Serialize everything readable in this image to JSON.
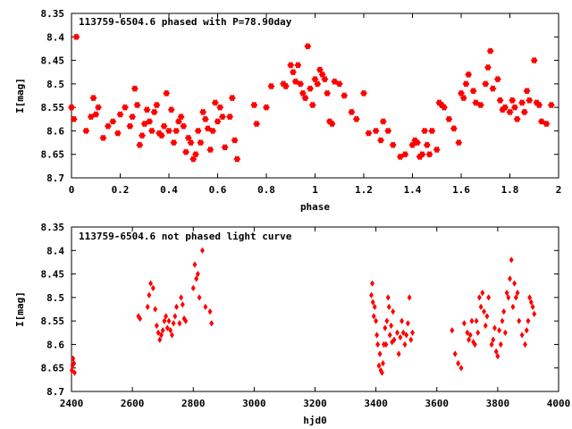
{
  "chart_data": [
    {
      "type": "scatter",
      "title": "113759-6504.6 phased with P=78.90day",
      "xlabel": "phase",
      "ylabel": "I[mag]",
      "xlim": [
        0,
        2
      ],
      "ylim": [
        8.7,
        8.35
      ],
      "y_inverted": true,
      "grid": false,
      "xticks": [
        "0",
        "0.2",
        "0.4",
        "0.6",
        "0.8",
        "1",
        "1.2",
        "1.4",
        "1.6",
        "1.8",
        "2"
      ],
      "yticks": [
        "8.35",
        "8.4",
        "8.45",
        "8.5",
        "8.55",
        "8.6",
        "8.65",
        "8.7"
      ],
      "marker_color": "#ff0000",
      "marker": "star",
      "series": [
        {
          "x": [
            0.0,
            0.01,
            0.02,
            0.06,
            0.08,
            0.09,
            0.1,
            0.11,
            0.13,
            0.15,
            0.17,
            0.19,
            0.2,
            0.22,
            0.24,
            0.25,
            0.26,
            0.27,
            0.28,
            0.29,
            0.3,
            0.31,
            0.32,
            0.33,
            0.34,
            0.35,
            0.36,
            0.37,
            0.38,
            0.39,
            0.4,
            0.41,
            0.42,
            0.43,
            0.44,
            0.45,
            0.46,
            0.47,
            0.48,
            0.49,
            0.5,
            0.51,
            0.52,
            0.53,
            0.54,
            0.55,
            0.56,
            0.57,
            0.58,
            0.59,
            0.6,
            0.61,
            0.62,
            0.63,
            0.65,
            0.66,
            0.67,
            0.68,
            0.75,
            0.76,
            0.8,
            0.82,
            0.87,
            0.88,
            0.9,
            0.91,
            0.92,
            0.93,
            0.94,
            0.95,
            0.96,
            0.97,
            0.98,
            0.99,
            1.0,
            1.01,
            1.02,
            1.03,
            1.04,
            1.05,
            1.06,
            1.07,
            1.08,
            1.1,
            1.12,
            1.15,
            1.17,
            1.2,
            1.22,
            1.25,
            1.27,
            1.28,
            1.3,
            1.32,
            1.35,
            1.37,
            1.4,
            1.41,
            1.42,
            1.43,
            1.44,
            1.45,
            1.46,
            1.47,
            1.48,
            1.5,
            1.51,
            1.52,
            1.53,
            1.55,
            1.57,
            1.59,
            1.6,
            1.61,
            1.62,
            1.63,
            1.65,
            1.66,
            1.68,
            1.7,
            1.71,
            1.72,
            1.73,
            1.75,
            1.76,
            1.77,
            1.78,
            1.8,
            1.81,
            1.82,
            1.83,
            1.85,
            1.86,
            1.87,
            1.88,
            1.9,
            1.91,
            1.92,
            1.93,
            1.95,
            1.97
          ],
          "y": [
            8.55,
            8.575,
            8.4,
            8.6,
            8.57,
            8.53,
            8.565,
            8.55,
            8.615,
            8.59,
            8.58,
            8.605,
            8.565,
            8.55,
            8.59,
            8.57,
            8.51,
            8.545,
            8.63,
            8.61,
            8.585,
            8.555,
            8.58,
            8.6,
            8.56,
            8.545,
            8.605,
            8.61,
            8.59,
            8.52,
            8.6,
            8.555,
            8.625,
            8.6,
            8.58,
            8.57,
            8.59,
            8.645,
            8.615,
            8.625,
            8.66,
            8.65,
            8.6,
            8.625,
            8.56,
            8.575,
            8.595,
            8.64,
            8.6,
            8.54,
            8.58,
            8.55,
            8.57,
            8.635,
            8.57,
            8.53,
            8.62,
            8.66,
            8.545,
            8.585,
            8.55,
            8.505,
            8.5,
            8.505,
            8.46,
            8.475,
            8.495,
            8.46,
            8.5,
            8.52,
            8.53,
            8.42,
            8.51,
            8.545,
            8.49,
            8.5,
            8.47,
            8.48,
            8.49,
            8.52,
            8.58,
            8.585,
            8.495,
            8.5,
            8.525,
            8.56,
            8.575,
            8.52,
            8.605,
            8.6,
            8.62,
            8.58,
            8.6,
            8.63,
            8.655,
            8.65,
            8.63,
            8.62,
            8.625,
            8.655,
            8.65,
            8.6,
            8.63,
            8.65,
            8.6,
            8.64,
            8.54,
            8.545,
            8.55,
            8.575,
            8.595,
            8.625,
            8.52,
            8.53,
            8.5,
            8.48,
            8.515,
            8.54,
            8.545,
            8.5,
            8.465,
            8.43,
            8.51,
            8.49,
            8.535,
            8.555,
            8.55,
            8.56,
            8.535,
            8.55,
            8.575,
            8.54,
            8.56,
            8.515,
            8.535,
            8.45,
            8.54,
            8.545,
            8.58,
            8.585,
            8.545
          ]
        }
      ]
    },
    {
      "type": "scatter",
      "title": "113759-6504.6 not phased light curve",
      "xlabel": "hjd0",
      "ylabel": "I[mag]",
      "xlim": [
        2400,
        4000
      ],
      "ylim": [
        8.7,
        8.35
      ],
      "y_inverted": true,
      "grid": false,
      "xticks": [
        "2400",
        "2600",
        "2800",
        "3000",
        "3200",
        "3400",
        "3600",
        "3800",
        "4000"
      ],
      "yticks": [
        "8.35",
        "8.4",
        "8.45",
        "8.5",
        "8.55",
        "8.6",
        "8.65",
        "8.7"
      ],
      "marker_color": "#ff0000",
      "marker": "diamond",
      "series": [
        {
          "x": [
            2401,
            2403,
            2405,
            2408,
            2410,
            2620,
            2625,
            2650,
            2655,
            2660,
            2668,
            2675,
            2680,
            2685,
            2690,
            2695,
            2700,
            2705,
            2710,
            2715,
            2720,
            2725,
            2730,
            2735,
            2740,
            2745,
            2755,
            2760,
            2765,
            2770,
            2775,
            2800,
            2805,
            2810,
            2815,
            2820,
            2830,
            2840,
            2855,
            2860,
            3385,
            3388,
            3390,
            3393,
            3396,
            3400,
            3403,
            3406,
            3410,
            3413,
            3416,
            3420,
            3423,
            3426,
            3430,
            3433,
            3436,
            3440,
            3443,
            3446,
            3450,
            3453,
            3456,
            3460,
            3470,
            3475,
            3480,
            3485,
            3490,
            3495,
            3500,
            3505,
            3510,
            3515,
            3520,
            3650,
            3660,
            3670,
            3680,
            3690,
            3700,
            3705,
            3710,
            3715,
            3720,
            3725,
            3730,
            3735,
            3740,
            3745,
            3750,
            3755,
            3760,
            3765,
            3770,
            3780,
            3785,
            3790,
            3795,
            3800,
            3805,
            3810,
            3815,
            3820,
            3825,
            3830,
            3835,
            3840,
            3845,
            3850,
            3855,
            3860,
            3865,
            3870,
            3880,
            3890,
            3895,
            3900,
            3905,
            3910,
            3915,
            3920
          ],
          "y": [
            8.655,
            8.645,
            8.63,
            8.64,
            8.66,
            8.54,
            8.545,
            8.52,
            8.495,
            8.47,
            8.48,
            8.525,
            8.56,
            8.575,
            8.59,
            8.58,
            8.57,
            8.55,
            8.54,
            8.565,
            8.55,
            8.57,
            8.58,
            8.555,
            8.54,
            8.52,
            8.555,
            8.5,
            8.515,
            8.545,
            8.55,
            8.48,
            8.43,
            8.46,
            8.45,
            8.5,
            8.4,
            8.52,
            8.53,
            8.555,
            8.495,
            8.47,
            8.51,
            8.54,
            8.52,
            8.55,
            8.58,
            8.6,
            8.645,
            8.62,
            8.655,
            8.66,
            8.64,
            8.6,
            8.565,
            8.6,
            8.55,
            8.5,
            8.52,
            8.58,
            8.56,
            8.595,
            8.53,
            8.59,
            8.575,
            8.62,
            8.585,
            8.55,
            8.575,
            8.6,
            8.58,
            8.555,
            8.5,
            8.59,
            8.575,
            8.57,
            8.62,
            8.64,
            8.65,
            8.555,
            8.575,
            8.59,
            8.58,
            8.55,
            8.595,
            8.6,
            8.55,
            8.575,
            8.5,
            8.52,
            8.49,
            8.53,
            8.56,
            8.54,
            8.5,
            8.6,
            8.59,
            8.565,
            8.615,
            8.625,
            8.57,
            8.6,
            8.55,
            8.53,
            8.575,
            8.49,
            8.5,
            8.46,
            8.42,
            8.52,
            8.47,
            8.5,
            8.49,
            8.55,
            8.58,
            8.6,
            8.57,
            8.55,
            8.5,
            8.51,
            8.52,
            8.535
          ]
        }
      ]
    }
  ]
}
